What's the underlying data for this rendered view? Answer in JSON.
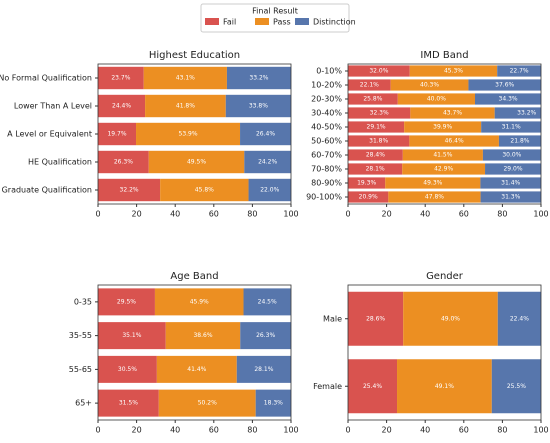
{
  "legend_title": "Final Result",
  "chart_data": [
    {
      "type": "stacked-barh",
      "title": "Highest Education",
      "categories": [
        "No Formal Qualification",
        "Lower Than A Level",
        "A Level or Equivalent",
        "HE Qualification",
        "Post Graduate Qualification"
      ],
      "series": [
        {
          "name": "Fail",
          "color": "#d9534f",
          "values": [
            23.7,
            24.4,
            19.7,
            26.3,
            32.2
          ],
          "value_labels": [
            "23.7%",
            "24.4%",
            "19.7%",
            "26.3%",
            "32.2%"
          ]
        },
        {
          "name": "Pass",
          "color": "#ec8f22",
          "values": [
            43.1,
            41.8,
            53.9,
            49.5,
            45.8
          ],
          "value_labels": [
            "43.1%",
            "41.8%",
            "53.9%",
            "49.5%",
            "45.8%"
          ]
        },
        {
          "name": "Distinction",
          "color": "#5776ac",
          "values": [
            33.2,
            33.8,
            26.4,
            24.2,
            22.0
          ],
          "value_labels": [
            "33.2%",
            "33.8%",
            "26.4%",
            "24.2%",
            "22.0%"
          ]
        }
      ],
      "xlim": [
        0,
        100
      ],
      "xticks": [
        0,
        20,
        40,
        60,
        80,
        100
      ]
    },
    {
      "type": "stacked-barh",
      "title": "IMD Band",
      "categories": [
        "0-10%",
        "10-20%",
        "20-30%",
        "30-40%",
        "40-50%",
        "50-60%",
        "60-70%",
        "70-80%",
        "80-90%",
        "90-100%"
      ],
      "series": [
        {
          "name": "Fail",
          "color": "#d9534f",
          "values": [
            32.0,
            22.1,
            25.8,
            32.3,
            29.1,
            31.8,
            28.4,
            28.1,
            19.3,
            20.9
          ],
          "value_labels": [
            "32.0%",
            "22.1%",
            "25.8%",
            "32.3%",
            "29.1%",
            "31.8%",
            "28.4%",
            "28.1%",
            "19.3%",
            "20.9%"
          ]
        },
        {
          "name": "Pass",
          "color": "#ec8f22",
          "values": [
            45.3,
            40.3,
            40.0,
            43.7,
            39.9,
            46.4,
            41.5,
            42.9,
            49.3,
            47.8
          ],
          "value_labels": [
            "45.3%",
            "40.3%",
            "40.0%",
            "43.7%",
            "39.9%",
            "46.4%",
            "41.5%",
            "42.9%",
            "49.3%",
            "47.8%"
          ]
        },
        {
          "name": "Distinction",
          "color": "#5776ac",
          "values": [
            22.7,
            37.6,
            34.3,
            33.2,
            31.1,
            21.8,
            30.0,
            29.0,
            31.4,
            31.3
          ],
          "value_labels": [
            "22.7%",
            "37.6%",
            "34.3%",
            "33.2%",
            "31.1%",
            "21.8%",
            "30.0%",
            "29.0%",
            "31.4%",
            "31.3%"
          ]
        }
      ],
      "xlim": [
        0,
        100
      ],
      "xticks": [
        0,
        20,
        40,
        60,
        80,
        100
      ]
    },
    {
      "type": "stacked-barh",
      "title": "Age Band",
      "categories": [
        "0-35",
        "35-55",
        "55-65",
        "65+"
      ],
      "series": [
        {
          "name": "Fail",
          "color": "#d9534f",
          "values": [
            29.5,
            35.1,
            30.5,
            31.5
          ],
          "value_labels": [
            "29.5%",
            "35.1%",
            "30.5%",
            "31.5%"
          ]
        },
        {
          "name": "Pass",
          "color": "#ec8f22",
          "values": [
            45.9,
            38.6,
            41.4,
            50.2
          ],
          "value_labels": [
            "45.9%",
            "38.6%",
            "41.4%",
            "50.2%"
          ]
        },
        {
          "name": "Distinction",
          "color": "#5776ac",
          "values": [
            24.5,
            26.3,
            28.1,
            18.3
          ],
          "value_labels": [
            "24.5%",
            "26.3%",
            "28.1%",
            "18.3%"
          ]
        }
      ],
      "xlim": [
        0,
        100
      ],
      "xticks": [
        0,
        20,
        40,
        60,
        80,
        100
      ]
    },
    {
      "type": "stacked-barh",
      "title": "Gender",
      "categories": [
        "Male",
        "Female"
      ],
      "series": [
        {
          "name": "Fail",
          "color": "#d9534f",
          "values": [
            28.6,
            25.4
          ],
          "value_labels": [
            "28.6%",
            "25.4%"
          ]
        },
        {
          "name": "Pass",
          "color": "#ec8f22",
          "values": [
            49.0,
            49.1
          ],
          "value_labels": [
            "49.0%",
            "49.1%"
          ]
        },
        {
          "name": "Distinction",
          "color": "#5776ac",
          "values": [
            22.4,
            25.5
          ],
          "value_labels": [
            "22.4%",
            "25.5%"
          ]
        }
      ],
      "xlim": [
        0,
        100
      ],
      "xticks": [
        0,
        20,
        40,
        60,
        80,
        100
      ]
    }
  ]
}
